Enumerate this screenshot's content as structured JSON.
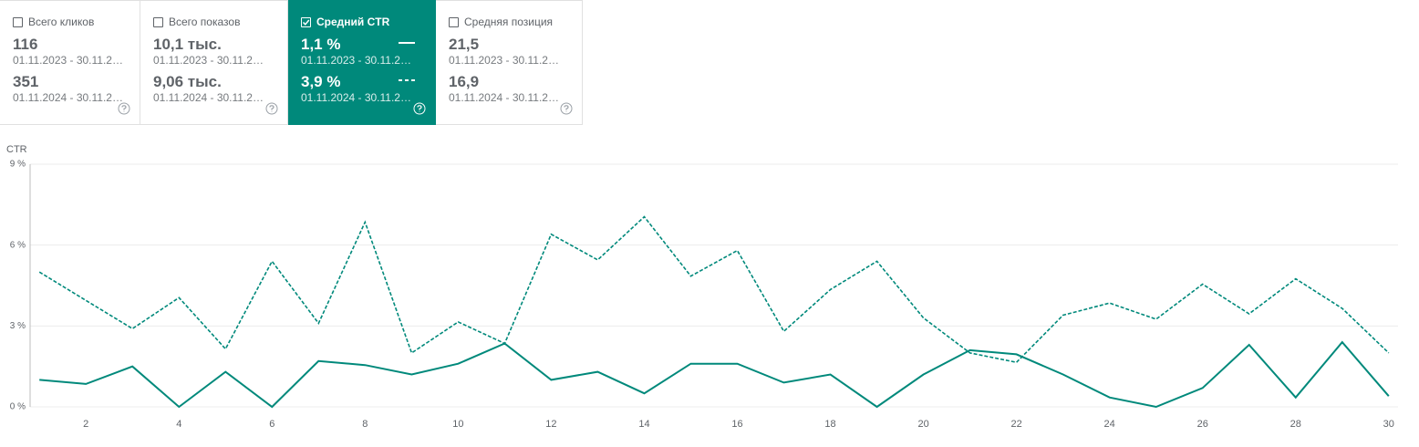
{
  "cards": [
    {
      "label": "Всего кликов",
      "checked": false,
      "value_1": "116",
      "period_1": "01.11.2023 - 30.11.2…",
      "value_2": "351",
      "period_2": "01.11.2024 - 30.11.2…"
    },
    {
      "label": "Всего показов",
      "checked": false,
      "value_1": "10,1 тыс.",
      "period_1": "01.11.2023 - 30.11.2…",
      "value_2": "9,06 тыс.",
      "period_2": "01.11.2024 - 30.11.2…"
    },
    {
      "label": "Средний CTR",
      "checked": true,
      "value_1": "1,1 %",
      "period_1": "01.11.2023 - 30.11.2…",
      "value_2": "3,9 %",
      "period_2": "01.11.2024 - 30.11.2…"
    },
    {
      "label": "Средняя позиция",
      "checked": false,
      "value_1": "21,5",
      "period_1": "01.11.2023 - 30.11.2…",
      "value_2": "16,9",
      "period_2": "01.11.2024 - 30.11.2…"
    }
  ],
  "chart_data": {
    "type": "line",
    "y_label": "CTR",
    "x": [
      1,
      2,
      3,
      4,
      5,
      6,
      7,
      8,
      9,
      10,
      11,
      12,
      13,
      14,
      15,
      16,
      17,
      18,
      19,
      20,
      21,
      22,
      23,
      24,
      25,
      26,
      27,
      28,
      29,
      30
    ],
    "xlim": [
      0.8,
      30.2
    ],
    "xticks": [
      2,
      4,
      6,
      8,
      10,
      12,
      14,
      16,
      18,
      20,
      22,
      24,
      26,
      28,
      30
    ],
    "ylim": [
      0,
      9
    ],
    "yticks": [
      {
        "value": 0,
        "label": "0 %"
      },
      {
        "value": 3,
        "label": "3 %"
      },
      {
        "value": 6,
        "label": "6 %"
      },
      {
        "value": 9,
        "label": "9 %"
      }
    ],
    "grid": true,
    "series": [
      {
        "color": "#00897b",
        "dash": "solid",
        "values": [
          1.0,
          0.85,
          1.5,
          0,
          1.3,
          0,
          1.7,
          1.55,
          1.2,
          1.6,
          2.35,
          1.0,
          1.3,
          0.5,
          1.6,
          1.6,
          0.9,
          1.2,
          0,
          1.2,
          2.1,
          1.95,
          1.2,
          0.35,
          0,
          0.7,
          2.3,
          0.35,
          2.4,
          0.4
        ]
      },
      {
        "color": "#00897b",
        "dash": "dashed",
        "values": [
          5.0,
          3.95,
          2.9,
          4.05,
          2.15,
          5.4,
          3.1,
          6.85,
          2.0,
          3.15,
          2.35,
          6.4,
          5.45,
          7.05,
          4.85,
          5.8,
          2.8,
          4.35,
          5.4,
          3.3,
          2.0,
          1.65,
          3.4,
          3.85,
          3.25,
          4.55,
          3.45,
          4.75,
          3.65,
          2.0
        ]
      }
    ]
  }
}
